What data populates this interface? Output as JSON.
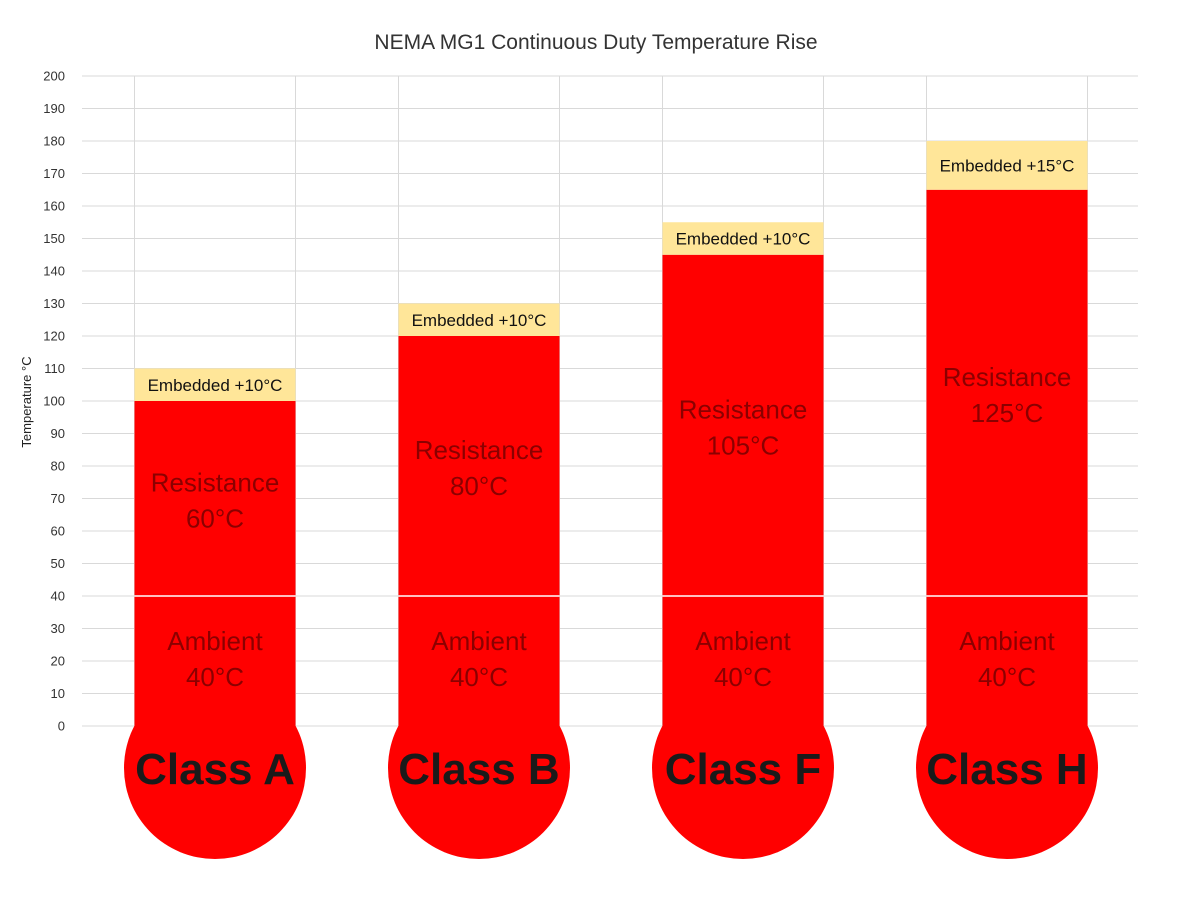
{
  "chart_data": {
    "type": "bar",
    "title": "NEMA MG1 Continuous Duty Temperature Rise",
    "xlabel": "",
    "ylabel": "Temperature °C",
    "ylim": [
      0,
      200
    ],
    "yticks": [
      0,
      10,
      20,
      30,
      40,
      50,
      60,
      70,
      80,
      90,
      100,
      110,
      120,
      130,
      140,
      150,
      160,
      170,
      180,
      190,
      200
    ],
    "grid": true,
    "stacked": true,
    "categories": [
      "Class A",
      "Class B",
      "Class F",
      "Class H"
    ],
    "series": [
      {
        "key": "ambient",
        "values": [
          40,
          40,
          40,
          40
        ],
        "labels": [
          "Ambient\n40°C",
          "Ambient\n40°C",
          "Ambient\n40°C",
          "Ambient\n40°C"
        ],
        "color": "#ff0000"
      },
      {
        "key": "resistance",
        "values": [
          60,
          80,
          105,
          125
        ],
        "labels": [
          "Resistance\n60°C",
          "Resistance\n80°C",
          "Resistance\n105°C",
          "Resistance\n125°C"
        ],
        "color": "#ff0000"
      },
      {
        "key": "embedded",
        "values": [
          10,
          10,
          10,
          15
        ],
        "labels": [
          "Embedded +10°C",
          "Embedded +10°C",
          "Embedded +10°C",
          "Embedded +15°C"
        ],
        "color": "#ffe699"
      }
    ],
    "colors": {
      "bulb": "#ff0000",
      "bar": "#ff0000",
      "embedded": "#ffe699",
      "segment_text": "#8b0000",
      "class_text": "#1a1a1a",
      "grid": "#d9d9d9"
    }
  }
}
